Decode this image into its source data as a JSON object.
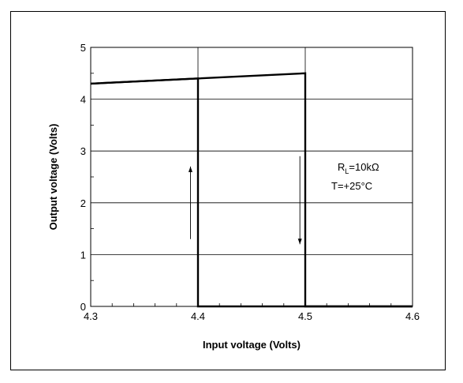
{
  "chart_data": {
    "type": "line",
    "title": "",
    "xlabel": "Input voltage (Volts)",
    "ylabel": "Output voltage (Volts)",
    "xlim": [
      4.3,
      4.6
    ],
    "ylim": [
      0,
      5
    ],
    "x_ticks": [
      "4.3",
      "4.4",
      "4.5",
      "4.6"
    ],
    "y_ticks": [
      "0",
      "1",
      "2",
      "3",
      "4",
      "5"
    ],
    "grid": true,
    "series": [
      {
        "x": [
          4.3,
          4.4,
          4.4,
          4.5,
          4.5,
          4.6
        ],
        "y": [
          4.3,
          4.4,
          0,
          0,
          4.5,
          0
        ]
      }
    ],
    "hysteresis_curve": {
      "rising": {
        "x": [
          4.3,
          4.4,
          4.4,
          4.6
        ],
        "y": [
          4.3,
          4.4,
          0,
          0
        ]
      },
      "falling": {
        "x": [
          4.3,
          4.5,
          4.5,
          4.6
        ],
        "y": [
          4.3,
          4.5,
          0,
          0
        ]
      }
    },
    "arrows": [
      {
        "direction": "up",
        "x": 4.393,
        "y_from": 1.3,
        "y_to": 2.7
      },
      {
        "direction": "down",
        "x": 4.495,
        "y_from": 2.9,
        "y_to": 1.2
      }
    ],
    "annotation": {
      "line1_main": "R",
      "line1_sub": "L",
      "line1_rest": "=10kΩ",
      "line2": "T=+25°C"
    }
  },
  "colors": {
    "line": "#000000",
    "grid": "#000000",
    "background": "#ffffff"
  }
}
